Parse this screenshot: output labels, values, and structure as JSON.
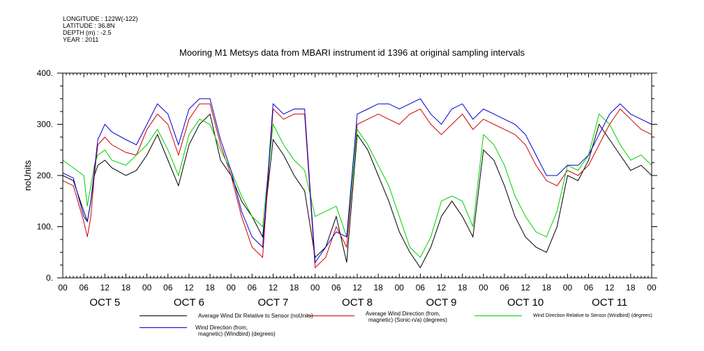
{
  "meta": {
    "longitude": "LONGITUDE : 122W(-122)",
    "latitude": "LATITUDE : 36.8N",
    "depth": "DEPTH (m) : -2.5",
    "year": "YEAR : 2011"
  },
  "chart_data": {
    "type": "line",
    "title": "Mooring M1 Metsys data from MBARI instrument id 1396 at original sampling intervals",
    "ylabel": "noUnits",
    "xlabel": "",
    "ylim": [
      0,
      400
    ],
    "y_ticks": [
      "0.",
      "100.",
      "200.",
      "300.",
      "400."
    ],
    "y_tick_values": [
      0,
      100,
      200,
      300,
      400
    ],
    "x_hour_labels": [
      "00",
      "06",
      "12",
      "18",
      "00",
      "06",
      "12",
      "18",
      "00",
      "06",
      "12",
      "18",
      "00",
      "06",
      "12",
      "18",
      "00",
      "06",
      "12",
      "18",
      "00",
      "06",
      "12",
      "18",
      "00",
      "06",
      "12",
      "18",
      "00"
    ],
    "x_day_labels": [
      "OCT  5",
      "OCT  6",
      "OCT  7",
      "OCT  8",
      "OCT  9",
      "OCT 10",
      "OCT 11"
    ],
    "x_unit": "hours since OCT 5 00:00",
    "xlim": [
      0,
      168
    ],
    "grid": false,
    "series": [
      {
        "name": "Average Wind Dir Relative to Sensor (noUnits)",
        "color": "#000000",
        "x": [
          0,
          3,
          6,
          7,
          8,
          9,
          10,
          12,
          14,
          18,
          21,
          24,
          27,
          30,
          33,
          36,
          39,
          42,
          45,
          48,
          51,
          54,
          57,
          60,
          63,
          66,
          69,
          72,
          75,
          78,
          81,
          84,
          87,
          90,
          93,
          96,
          99,
          102,
          105,
          108,
          111,
          114,
          117,
          120,
          123,
          126,
          129,
          132,
          135,
          138,
          141,
          144,
          147,
          150,
          153,
          156,
          159,
          162,
          165,
          168
        ],
        "values": [
          200,
          190,
          130,
          110,
          150,
          200,
          220,
          230,
          215,
          200,
          210,
          240,
          280,
          230,
          180,
          260,
          300,
          320,
          230,
          200,
          150,
          120,
          80,
          270,
          240,
          200,
          170,
          40,
          60,
          120,
          30,
          280,
          250,
          200,
          150,
          90,
          50,
          20,
          60,
          120,
          150,
          120,
          80,
          250,
          230,
          180,
          120,
          80,
          60,
          50,
          100,
          200,
          190,
          230,
          300,
          270,
          240,
          210,
          220,
          200
        ]
      },
      {
        "name": "Average Wind Direction (from, magnetic) (Sonic-n/a) (degrees)",
        "color": "#d00000",
        "x": [
          0,
          3,
          6,
          7,
          8,
          9,
          10,
          12,
          14,
          18,
          21,
          24,
          27,
          30,
          33,
          36,
          39,
          42,
          45,
          48,
          51,
          54,
          57,
          60,
          63,
          66,
          69,
          72,
          75,
          78,
          81,
          84,
          87,
          90,
          93,
          96,
          99,
          102,
          105,
          108,
          111,
          114,
          117,
          120,
          123,
          126,
          129,
          132,
          135,
          138,
          141,
          144,
          147,
          150,
          153,
          156,
          159,
          162,
          165,
          168
        ],
        "values": [
          190,
          180,
          110,
          80,
          120,
          200,
          260,
          275,
          260,
          245,
          240,
          290,
          320,
          300,
          240,
          310,
          340,
          340,
          260,
          200,
          120,
          60,
          40,
          330,
          310,
          320,
          320,
          20,
          40,
          100,
          60,
          300,
          310,
          320,
          310,
          300,
          320,
          330,
          300,
          280,
          300,
          320,
          290,
          310,
          300,
          290,
          280,
          260,
          220,
          190,
          180,
          210,
          200,
          220,
          260,
          300,
          330,
          310,
          290,
          280
        ]
      },
      {
        "name": "Wind Direction Relative to Sensor (Windbird) (degrees)",
        "color": "#00d000",
        "x": [
          0,
          3,
          6,
          7,
          8,
          9,
          10,
          12,
          14,
          18,
          21,
          24,
          27,
          30,
          33,
          36,
          39,
          42,
          45,
          48,
          51,
          54,
          57,
          60,
          63,
          66,
          69,
          72,
          75,
          78,
          81,
          84,
          87,
          90,
          93,
          96,
          99,
          102,
          105,
          108,
          111,
          114,
          117,
          120,
          123,
          126,
          129,
          132,
          135,
          138,
          141,
          144,
          147,
          150,
          153,
          156,
          159,
          162,
          165,
          168
        ],
        "values": [
          230,
          215,
          200,
          140,
          180,
          220,
          240,
          250,
          230,
          220,
          240,
          260,
          290,
          250,
          200,
          280,
          310,
          300,
          250,
          210,
          160,
          120,
          100,
          300,
          260,
          230,
          210,
          120,
          130,
          140,
          80,
          290,
          260,
          220,
          180,
          120,
          60,
          40,
          80,
          150,
          160,
          150,
          100,
          280,
          260,
          220,
          160,
          120,
          90,
          80,
          130,
          220,
          210,
          240,
          320,
          300,
          260,
          230,
          240,
          220
        ]
      },
      {
        "name": "Wind Direction (from, magnetic) (Windbird) (degrees)",
        "color": "#0000d0",
        "x": [
          0,
          3,
          6,
          7,
          8,
          9,
          10,
          12,
          14,
          18,
          21,
          24,
          27,
          30,
          33,
          36,
          39,
          42,
          45,
          48,
          51,
          54,
          57,
          60,
          63,
          66,
          69,
          72,
          75,
          78,
          81,
          84,
          87,
          90,
          93,
          96,
          99,
          102,
          105,
          108,
          111,
          114,
          117,
          120,
          123,
          126,
          129,
          132,
          135,
          138,
          141,
          144,
          147,
          150,
          153,
          156,
          159,
          162,
          165,
          168
        ],
        "values": [
          205,
          195,
          120,
          110,
          150,
          210,
          270,
          300,
          285,
          270,
          260,
          300,
          340,
          320,
          260,
          330,
          350,
          350,
          270,
          210,
          130,
          80,
          60,
          340,
          320,
          330,
          330,
          30,
          60,
          90,
          80,
          320,
          330,
          340,
          340,
          330,
          340,
          350,
          320,
          300,
          330,
          340,
          310,
          330,
          320,
          310,
          300,
          280,
          240,
          200,
          200,
          220,
          220,
          240,
          280,
          320,
          340,
          320,
          310,
          300
        ]
      }
    ]
  },
  "legend": {
    "entries": [
      {
        "line1": "Average Wind Dir Relative to Sensor (noUnits)",
        "line2": "",
        "color": "#000000"
      },
      {
        "line1": "Average Wind Direction (from,",
        "line2": "magnetic) (Sonic-n/a) (degrees)",
        "color": "#d00000"
      },
      {
        "line1": "Wind Direction Relative to Sensor (Windbird) (degrees)",
        "line2": "",
        "color": "#00d000"
      },
      {
        "line1": "Wind Direction (from,",
        "line2": "magnetic) (Windbird) (degrees)",
        "color": "#0000d0"
      }
    ]
  }
}
